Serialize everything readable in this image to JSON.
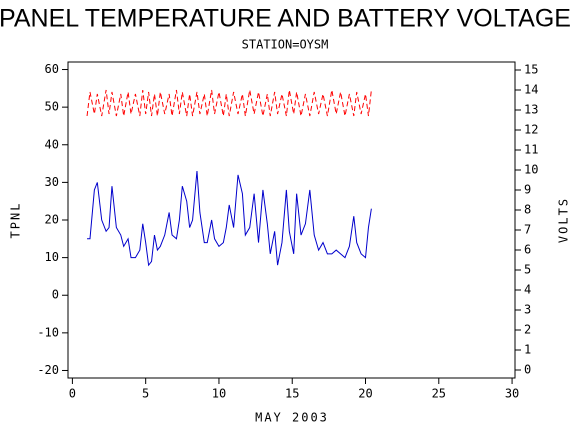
{
  "chart_data": {
    "type": "line",
    "title": "PANEL TEMPERATURE AND BATTERY VOLTAGE",
    "subtitle": "STATION=OYSM",
    "xlabel": "MAY 2003",
    "ylabel": "TPNL",
    "y2label": "VOLTS",
    "x": [
      1,
      1.2,
      1.5,
      1.7,
      2,
      2.3,
      2.5,
      2.7,
      3,
      3.3,
      3.5,
      3.8,
      4,
      4.3,
      4.6,
      4.8,
      5,
      5.2,
      5.4,
      5.6,
      5.8,
      6,
      6.3,
      6.6,
      6.8,
      7.1,
      7.3,
      7.5,
      7.8,
      8,
      8.2,
      8.5,
      8.7,
      9,
      9.2,
      9.5,
      9.7,
      10,
      10.3,
      10.5,
      10.7,
      11,
      11.3,
      11.6,
      11.8,
      12.1,
      12.4,
      12.7,
      13,
      13.3,
      13.5,
      13.8,
      14,
      14.3,
      14.6,
      14.8,
      15.1,
      15.3,
      15.6,
      15.9,
      16.2,
      16.5,
      16.8,
      17.1,
      17.4,
      17.7,
      18,
      18.3,
      18.6,
      18.9,
      19.2,
      19.4,
      19.7,
      20,
      20.2,
      20.4
    ],
    "series": [
      {
        "name": "TPNL",
        "color": "#0000cc",
        "axis": "y",
        "dashed": false,
        "values": [
          15,
          15,
          28,
          30,
          20,
          17,
          18,
          29,
          18,
          16,
          13,
          15,
          10,
          10,
          12,
          19,
          14,
          8,
          9,
          16,
          12,
          13,
          16,
          22,
          16,
          15,
          20,
          29,
          25,
          18,
          20,
          33,
          22,
          14,
          14,
          20,
          15,
          13,
          14,
          18,
          24,
          18,
          32,
          27,
          16,
          18,
          27,
          14,
          28,
          19,
          11,
          17,
          8,
          14,
          28,
          17,
          11,
          27,
          16,
          19,
          28,
          16,
          12,
          14,
          11,
          11,
          12,
          11,
          10,
          13,
          21,
          14,
          11,
          10,
          18,
          23
        ]
      },
      {
        "name": "VOLTS",
        "color": "#ff0000",
        "axis": "y2",
        "dashed": true,
        "values": [
          12.7,
          13.9,
          12.8,
          13.8,
          12.7,
          14.0,
          12.8,
          13.9,
          12.7,
          13.8,
          12.7,
          13.9,
          12.8,
          13.8,
          12.7,
          14.0,
          12.8,
          13.9,
          12.7,
          13.8,
          12.7,
          13.9,
          12.8,
          13.8,
          12.7,
          14.0,
          12.8,
          13.9,
          12.7,
          13.8,
          12.7,
          13.9,
          12.8,
          13.8,
          12.7,
          14.0,
          12.8,
          13.9,
          12.7,
          13.8,
          12.7,
          13.9,
          12.8,
          13.8,
          12.7,
          14.0,
          12.8,
          13.9,
          12.7,
          13.8,
          12.7,
          13.9,
          12.8,
          13.8,
          12.7,
          14.0,
          12.8,
          13.9,
          12.7,
          13.8,
          12.7,
          13.9,
          12.8,
          13.8,
          12.7,
          14.0,
          12.8,
          13.9,
          12.7,
          13.8,
          12.7,
          13.9,
          12.8,
          13.8,
          12.7,
          14.0
        ]
      }
    ],
    "xlim": [
      -0.3,
      30.2
    ],
    "xticks": [
      0,
      5,
      10,
      15,
      20,
      25,
      30
    ],
    "ylim": [
      -22,
      62
    ],
    "yticks": [
      -20,
      -10,
      0,
      10,
      20,
      30,
      40,
      50,
      60
    ],
    "y2lim": [
      -0.4,
      15.4
    ],
    "y2ticks": [
      0,
      1,
      2,
      3,
      4,
      5,
      6,
      7,
      8,
      9,
      10,
      11,
      12,
      13,
      14,
      15
    ]
  }
}
